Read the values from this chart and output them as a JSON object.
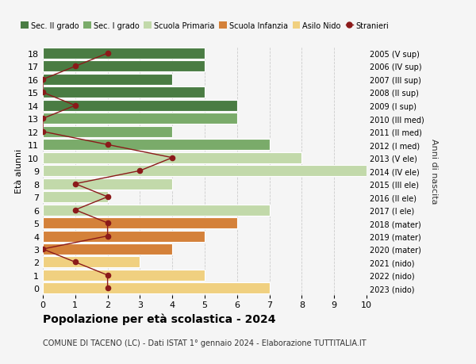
{
  "ages": [
    18,
    17,
    16,
    15,
    14,
    13,
    12,
    11,
    10,
    9,
    8,
    7,
    6,
    5,
    4,
    3,
    2,
    1,
    0
  ],
  "anni": [
    "2005 (V sup)",
    "2006 (IV sup)",
    "2007 (III sup)",
    "2008 (II sup)",
    "2009 (I sup)",
    "2010 (III med)",
    "2011 (II med)",
    "2012 (I med)",
    "2013 (V ele)",
    "2014 (IV ele)",
    "2015 (III ele)",
    "2016 (II ele)",
    "2017 (I ele)",
    "2018 (mater)",
    "2019 (mater)",
    "2020 (mater)",
    "2021 (nido)",
    "2022 (nido)",
    "2023 (nido)"
  ],
  "bar_values": [
    5,
    5,
    4,
    5,
    6,
    6,
    4,
    7,
    8,
    10,
    4,
    2,
    7,
    6,
    5,
    4,
    3,
    5,
    7
  ],
  "bar_colors": [
    "#4a7c43",
    "#4a7c43",
    "#4a7c43",
    "#4a7c43",
    "#4a7c43",
    "#7aab6a",
    "#7aab6a",
    "#7aab6a",
    "#c2d9aa",
    "#c2d9aa",
    "#c2d9aa",
    "#c2d9aa",
    "#c2d9aa",
    "#d4813a",
    "#d4813a",
    "#d4813a",
    "#f0d080",
    "#f0d080",
    "#f0d080"
  ],
  "stranieri_values": [
    2,
    1,
    0,
    0,
    1,
    0,
    0,
    2,
    4,
    3,
    1,
    2,
    1,
    2,
    2,
    0,
    1,
    2,
    2
  ],
  "stranieri_color": "#8b1a1a",
  "stranieri_line_color": "#8b1a1a",
  "title": "Popolazione per età scolastica - 2024",
  "subtitle": "COMUNE DI TACENO (LC) - Dati ISTAT 1° gennaio 2024 - Elaborazione TUTTITALIA.IT",
  "xticks": [
    0,
    1,
    2,
    3,
    4,
    5,
    6,
    7,
    8,
    9,
    10
  ],
  "ylabel_left": "Età alunni",
  "ylabel_right": "Anni di nascita",
  "legend_labels": [
    "Sec. II grado",
    "Sec. I grado",
    "Scuola Primaria",
    "Scuola Infanzia",
    "Asilo Nido",
    "Stranieri"
  ],
  "legend_colors": [
    "#4a7c43",
    "#7aab6a",
    "#c2d9aa",
    "#d4813a",
    "#f0d080",
    "#8b1a1a"
  ],
  "bg_color": "#f5f5f5",
  "grid_color": "#cccccc"
}
